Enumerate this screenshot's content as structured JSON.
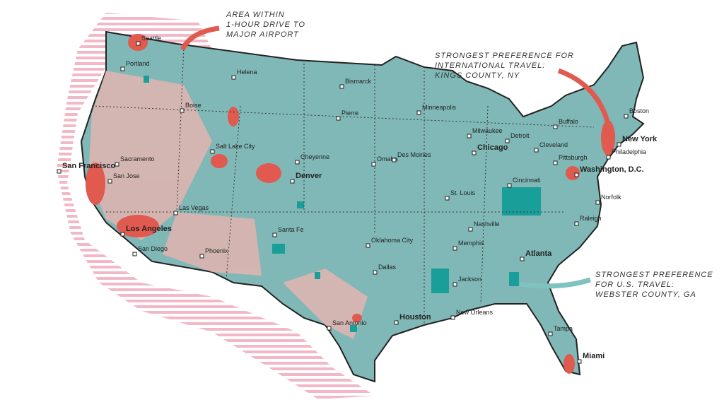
{
  "annotations": [
    {
      "lines": [
        "AREA WITHIN",
        "1-HOUR DRIVE TO",
        "MAJOR AIRPORT"
      ]
    },
    {
      "lines": [
        "STRONGEST PREFERENCE FOR",
        "INTERNATIONAL TRAVEL:",
        "KINGS COUNTY, NY"
      ]
    },
    {
      "lines": [
        "STRONGEST PREFERENCE",
        "FOR U.S. TRAVEL:",
        "WEBSTER COUNTY, GA"
      ]
    }
  ],
  "cities": [
    "Seattle",
    "Portland",
    "Helena",
    "Bismarck",
    "Boise",
    "Pierre",
    "Minneapolis",
    "Milwaukee",
    "Detroit",
    "Buffalo",
    "Boston",
    "New York",
    "Sacramento",
    "San Francisco",
    "San Jose",
    "Salt Lake City",
    "Cheyenne",
    "Denver",
    "Omaha",
    "Des Moines",
    "Chicago",
    "Cleveland",
    "Pittsburgh",
    "Philadelphia",
    "Washington, D.C.",
    "Cincinnati",
    "St. Louis",
    "Norfolk",
    "Las Vegas",
    "Santa Fe",
    "Los Angeles",
    "San Diego",
    "Phoenix",
    "Oklahoma City",
    "Memphis",
    "Nashville",
    "Raleigh",
    "Atlanta",
    "Dallas",
    "Jackson",
    "San Antonio",
    "Houston",
    "New Orleans",
    "Tampa",
    "Miami"
  ]
}
